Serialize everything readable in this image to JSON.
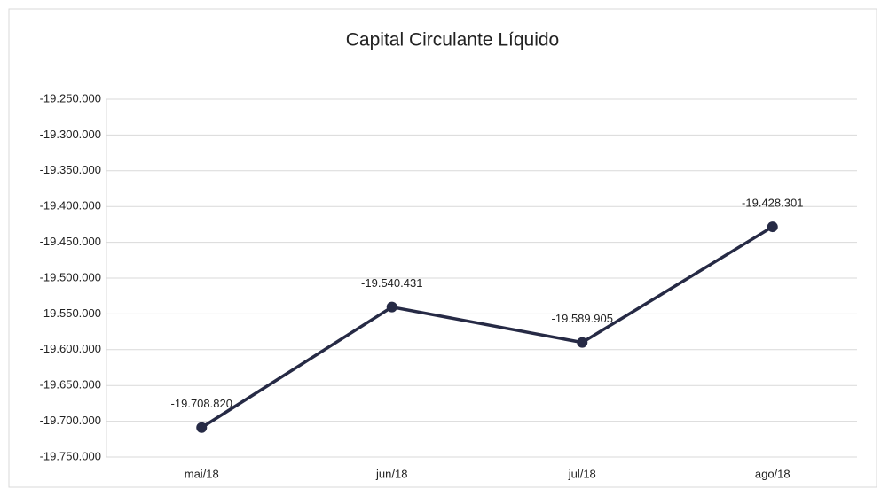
{
  "chart_data": {
    "type": "line",
    "title": "Capital Circulante Líquido",
    "categories": [
      "mai/18",
      "jun/18",
      "jul/18",
      "ago/18"
    ],
    "series": [
      {
        "name": "Capital Circulante Líquido",
        "color": "#262a45",
        "values": [
          -19708820,
          -19540431,
          -19589905,
          -19428301
        ],
        "value_labels": [
          "-19.708.820",
          "-19.540.431",
          "-19.589.905",
          "-19.428.301"
        ]
      }
    ],
    "ylim": [
      -19750000,
      -19250000
    ],
    "yticks": [
      {
        "value": -19250000,
        "label": "-19.250.000"
      },
      {
        "value": -19300000,
        "label": "-19.300.000"
      },
      {
        "value": -19350000,
        "label": "-19.350.000"
      },
      {
        "value": -19400000,
        "label": "-19.400.000"
      },
      {
        "value": -19450000,
        "label": "-19.450.000"
      },
      {
        "value": -19500000,
        "label": "-19.500.000"
      },
      {
        "value": -19550000,
        "label": "-19.550.000"
      },
      {
        "value": -19600000,
        "label": "-19.600.000"
      },
      {
        "value": -19650000,
        "label": "-19.650.000"
      },
      {
        "value": -19700000,
        "label": "-19.700.000"
      },
      {
        "value": -19750000,
        "label": "-19.750.000"
      }
    ],
    "grid": true
  }
}
